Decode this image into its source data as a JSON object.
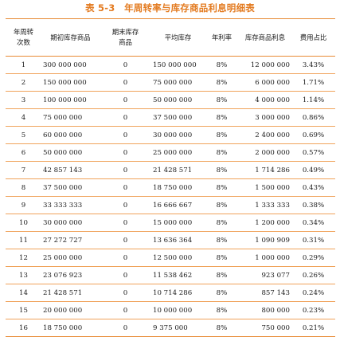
{
  "title": "表 5-3　年周转率与库存商品利息明细表",
  "table": {
    "headers": [
      [
        "年周转",
        "次数"
      ],
      [
        "期初库存商品"
      ],
      [
        "期末库存",
        "商品"
      ],
      [
        "平均库存"
      ],
      [
        "年利率"
      ],
      [
        "库存商品利息"
      ],
      [
        "费用占比"
      ]
    ],
    "rows": [
      [
        "1",
        "300 000 000",
        "0",
        "150 000 000",
        "8%",
        "12 000 000",
        "3.43%"
      ],
      [
        "2",
        "150 000 000",
        "0",
        "75 000 000",
        "8%",
        "6 000 000",
        "1.71%"
      ],
      [
        "3",
        "100 000 000",
        "0",
        "50 000 000",
        "8%",
        "4 000 000",
        "1.14%"
      ],
      [
        "4",
        "75 000 000",
        "0",
        "37 500 000",
        "8%",
        "3 000 000",
        "0.86%"
      ],
      [
        "5",
        "60 000 000",
        "0",
        "30 000 000",
        "8%",
        "2 400 000",
        "0.69%"
      ],
      [
        "6",
        "50 000 000",
        "0",
        "25 000 000",
        "8%",
        "2 000 000",
        "0.57%"
      ],
      [
        "7",
        "42 857 143",
        "0",
        "21 428 571",
        "8%",
        "1 714 286",
        "0.49%"
      ],
      [
        "8",
        "37 500 000",
        "0",
        "18 750 000",
        "8%",
        "1 500 000",
        "0.43%"
      ],
      [
        "9",
        "33 333 333",
        "0",
        "16 666 667",
        "8%",
        "1 333 333",
        "0.38%"
      ],
      [
        "10",
        "30 000 000",
        "0",
        "15 000 000",
        "8%",
        "1 200 000",
        "0.34%"
      ],
      [
        "11",
        "27 272 727",
        "0",
        "13 636 364",
        "8%",
        "1 090 909",
        "0.31%"
      ],
      [
        "12",
        "25 000 000",
        "0",
        "12 500 000",
        "8%",
        "1 000 000",
        "0.29%"
      ],
      [
        "13",
        "23 076 923",
        "0",
        "11 538 462",
        "8%",
        "923 077",
        "0.26%"
      ],
      [
        "14",
        "21 428 571",
        "0",
        "10 714 286",
        "8%",
        "857 143",
        "0.24%"
      ],
      [
        "15",
        "20 000 000",
        "0",
        "10 000 000",
        "8%",
        "800 000",
        "0.23%"
      ],
      [
        "16",
        "18 750 000",
        "0",
        "9 375 000",
        "8%",
        "750 000",
        "0.21%"
      ]
    ]
  },
  "colors": {
    "title": "#e37a1f",
    "rule": "#f0a35b",
    "rule_strong": "#e88a34"
  }
}
